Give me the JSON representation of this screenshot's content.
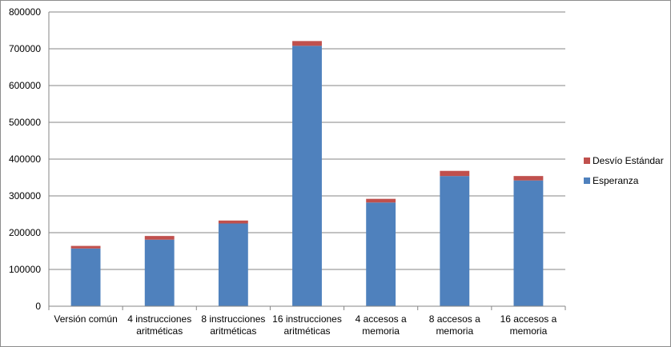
{
  "chart_data": {
    "type": "bar",
    "stacked": true,
    "title": "",
    "xlabel": "",
    "ylabel": "",
    "ylim": [
      0,
      800000
    ],
    "yticks": [
      0,
      100000,
      200000,
      300000,
      400000,
      500000,
      600000,
      700000,
      800000
    ],
    "grid": true,
    "legend_position": "right",
    "categories": [
      [
        "Versión común"
      ],
      [
        "4 instrucciones",
        "aritméticas"
      ],
      [
        "8 instrucciones",
        "aritméticas"
      ],
      [
        "16 instrucciones",
        "aritméticas"
      ],
      [
        "4 accesos a",
        "memoria"
      ],
      [
        "8 accesos a",
        "memoria"
      ],
      [
        "16 accesos a",
        "memoria"
      ]
    ],
    "series": [
      {
        "name": "Esperanza",
        "color": "#4f81bd",
        "values": [
          157000,
          181000,
          225000,
          708000,
          282000,
          354000,
          342000
        ]
      },
      {
        "name": "Desvío Estándar",
        "color": "#c0504d",
        "values": [
          7000,
          10000,
          8000,
          13000,
          10000,
          14000,
          12000
        ]
      }
    ],
    "legend_order": [
      "Desvío Estándar",
      "Esperanza"
    ]
  }
}
